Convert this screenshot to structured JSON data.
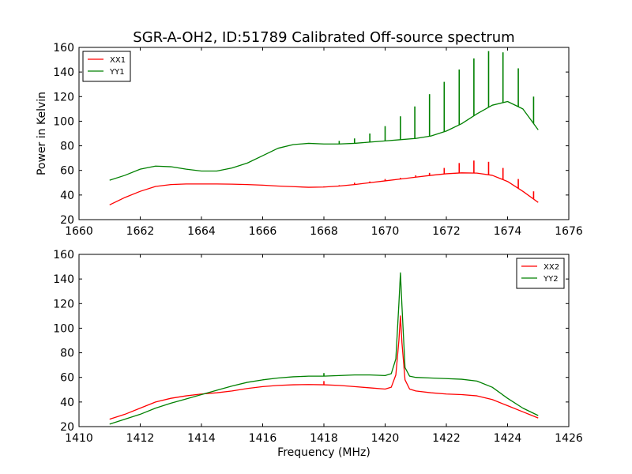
{
  "chart_data": [
    {
      "type": "line",
      "title": "SGR-A-OH2, ID:51789 Calibrated Off-source spectrum",
      "xlabel": "",
      "ylabel": "Power in Kelvin",
      "xlim": [
        1660,
        1676
      ],
      "ylim": [
        20,
        160
      ],
      "xticks": [
        1660,
        1662,
        1664,
        1666,
        1668,
        1670,
        1672,
        1674,
        1676
      ],
      "yticks": [
        20,
        40,
        60,
        80,
        100,
        120,
        140,
        160
      ],
      "legend_position": "top-left",
      "series": [
        {
          "name": "XX1",
          "color": "#ff0000",
          "x": [
            1661.0,
            1661.5,
            1662.0,
            1662.5,
            1663.0,
            1663.5,
            1664.0,
            1664.5,
            1665.0,
            1665.5,
            1666.0,
            1666.5,
            1667.0,
            1667.5,
            1668.0,
            1668.5,
            1669.0,
            1669.5,
            1670.0,
            1670.5,
            1671.0,
            1671.5,
            1672.0,
            1672.5,
            1673.0,
            1673.5,
            1674.0,
            1674.5,
            1675.0
          ],
          "y": [
            32,
            38,
            43,
            47,
            48.5,
            49,
            49,
            49,
            48.8,
            48.5,
            48,
            47.3,
            46.8,
            46.3,
            46.5,
            47.3,
            48.5,
            50,
            51.5,
            53,
            54.5,
            56,
            57.3,
            58,
            57.8,
            56,
            51,
            43,
            34
          ],
          "spikes": [
            {
              "x": 1668.0,
              "peak": 47
            },
            {
              "x": 1668.5,
              "peak": 48
            },
            {
              "x": 1669.0,
              "peak": 50
            },
            {
              "x": 1669.5,
              "peak": 51
            },
            {
              "x": 1670.0,
              "peak": 53
            },
            {
              "x": 1670.5,
              "peak": 54
            },
            {
              "x": 1671.0,
              "peak": 56
            },
            {
              "x": 1671.45,
              "peak": 58
            },
            {
              "x": 1671.93,
              "peak": 62
            },
            {
              "x": 1672.42,
              "peak": 66
            },
            {
              "x": 1672.9,
              "peak": 68
            },
            {
              "x": 1673.38,
              "peak": 67
            },
            {
              "x": 1673.85,
              "peak": 62
            },
            {
              "x": 1674.35,
              "peak": 53
            },
            {
              "x": 1674.85,
              "peak": 43
            }
          ]
        },
        {
          "name": "YY1",
          "color": "#008000",
          "x": [
            1661.0,
            1661.5,
            1662.0,
            1662.5,
            1663.0,
            1663.5,
            1664.0,
            1664.5,
            1665.0,
            1665.5,
            1666.0,
            1666.5,
            1667.0,
            1667.5,
            1668.0,
            1668.5,
            1669.0,
            1669.5,
            1670.0,
            1670.5,
            1671.0,
            1671.5,
            1672.0,
            1672.5,
            1673.0,
            1673.5,
            1674.0,
            1674.5,
            1675.0
          ],
          "y": [
            52,
            56,
            61,
            63.5,
            63,
            61,
            59.5,
            59.5,
            62,
            66,
            72,
            78,
            81,
            82,
            81.5,
            81.5,
            82,
            83,
            84,
            85,
            86,
            88,
            92,
            98,
            106,
            113,
            116,
            110,
            93
          ],
          "spikes": [
            {
              "x": 1668.5,
              "peak": 84
            },
            {
              "x": 1669.0,
              "peak": 86
            },
            {
              "x": 1669.5,
              "peak": 90
            },
            {
              "x": 1670.0,
              "peak": 96
            },
            {
              "x": 1670.5,
              "peak": 104
            },
            {
              "x": 1670.97,
              "peak": 112
            },
            {
              "x": 1671.45,
              "peak": 122
            },
            {
              "x": 1671.93,
              "peak": 132
            },
            {
              "x": 1672.42,
              "peak": 142
            },
            {
              "x": 1672.9,
              "peak": 151
            },
            {
              "x": 1673.38,
              "peak": 157
            },
            {
              "x": 1673.85,
              "peak": 156
            },
            {
              "x": 1674.35,
              "peak": 143
            },
            {
              "x": 1674.85,
              "peak": 120
            }
          ]
        }
      ]
    },
    {
      "type": "line",
      "title": "",
      "xlabel": "Frequency (MHz)",
      "ylabel": "",
      "xlim": [
        1410,
        1426
      ],
      "ylim": [
        20,
        160
      ],
      "xticks": [
        1410,
        1412,
        1414,
        1416,
        1418,
        1420,
        1422,
        1424,
        1426
      ],
      "yticks": [
        20,
        40,
        60,
        80,
        100,
        120,
        140,
        160
      ],
      "legend_position": "top-right",
      "series": [
        {
          "name": "XX2",
          "color": "#ff0000",
          "x": [
            1411.0,
            1411.5,
            1412.0,
            1412.5,
            1413.0,
            1413.5,
            1414.0,
            1414.5,
            1415.0,
            1415.5,
            1416.0,
            1416.5,
            1417.0,
            1417.5,
            1418.0,
            1418.5,
            1419.0,
            1419.5,
            1420.0,
            1420.2,
            1420.35,
            1420.45,
            1420.5,
            1420.55,
            1420.65,
            1420.8,
            1421.0,
            1421.5,
            1422.0,
            1422.5,
            1423.0,
            1423.5,
            1424.0,
            1424.5,
            1425.0
          ],
          "y": [
            26,
            30,
            35,
            40,
            43,
            45,
            46.5,
            47.5,
            49,
            51,
            52.5,
            53.5,
            54,
            54.2,
            54,
            53.5,
            52.5,
            51.5,
            50.5,
            52,
            62,
            90,
            110,
            88,
            58,
            50.5,
            49,
            47.5,
            46.5,
            46,
            45,
            42,
            37,
            32,
            27
          ],
          "spikes": [
            {
              "x": 1418.0,
              "peak": 57
            }
          ]
        },
        {
          "name": "YY2",
          "color": "#008000",
          "x": [
            1411.0,
            1411.5,
            1412.0,
            1412.5,
            1413.0,
            1413.5,
            1414.0,
            1414.5,
            1415.0,
            1415.5,
            1416.0,
            1416.5,
            1417.0,
            1417.5,
            1418.0,
            1418.5,
            1419.0,
            1419.5,
            1420.0,
            1420.2,
            1420.35,
            1420.45,
            1420.5,
            1420.55,
            1420.65,
            1420.8,
            1421.0,
            1421.5,
            1422.0,
            1422.5,
            1423.0,
            1423.5,
            1424.0,
            1424.5,
            1425.0
          ],
          "y": [
            22,
            26,
            30,
            35,
            39,
            42.5,
            46,
            49.5,
            53,
            56,
            58,
            59.5,
            60.5,
            61,
            61,
            61.5,
            62,
            62,
            61.5,
            63,
            75,
            120,
            145,
            118,
            68,
            61,
            60,
            59.5,
            59,
            58.5,
            57,
            52,
            43,
            35,
            29
          ],
          "spikes": [
            {
              "x": 1418.0,
              "peak": 63.5
            }
          ]
        }
      ]
    }
  ]
}
